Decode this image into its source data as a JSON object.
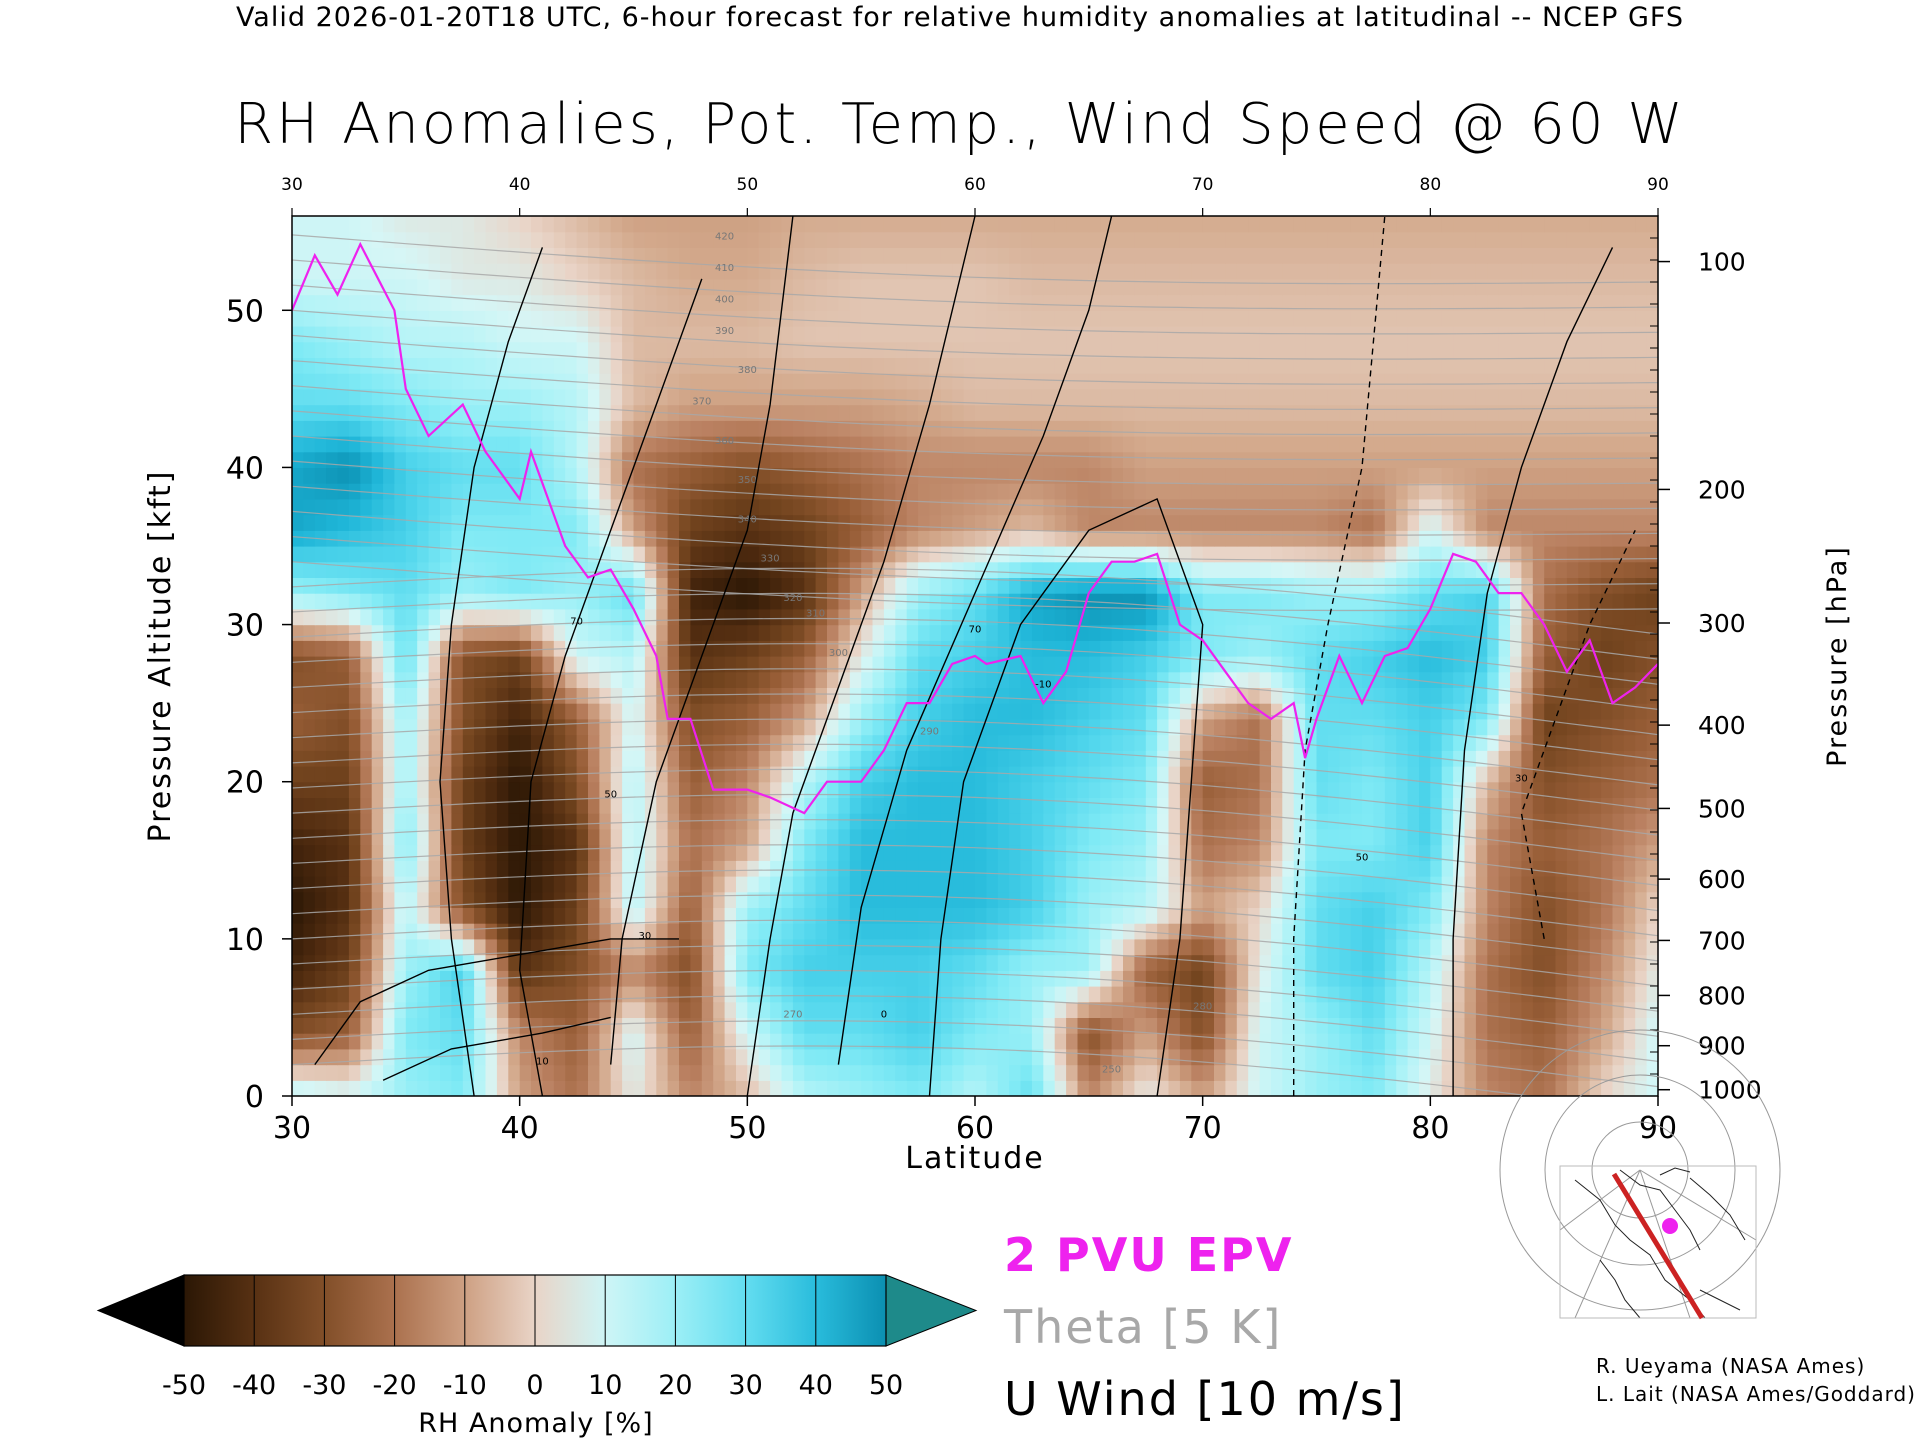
{
  "header": {
    "top_line": "Valid 2026-01-20T18 UTC, 6-hour forecast for relative humidity anomalies at latitudinal -- NCEP GFS",
    "title": "RH Anomalies, Pot. Temp., Wind Speed @ 60 W"
  },
  "chart_data": {
    "type": "heatmap",
    "title": "RH Anomalies, Pot. Temp., Wind Speed @ 60 W",
    "xlabel": "Latitude",
    "ylabel": "Pressure Altitude [kft]",
    "y2label": "Pressure [hPa]",
    "xlim": [
      30,
      90
    ],
    "ylim": [
      0,
      56
    ],
    "x_ticks": [
      30,
      40,
      50,
      60,
      70,
      80,
      90
    ],
    "y_ticks": [
      0,
      10,
      20,
      30,
      40,
      50
    ],
    "pressure_ticks": [
      {
        "label": "100",
        "kft": 53.1
      },
      {
        "label": "200",
        "kft": 38.6
      },
      {
        "label": "300",
        "kft": 30.1
      },
      {
        "label": "400",
        "kft": 23.6
      },
      {
        "label": "500",
        "kft": 18.3
      },
      {
        "label": "600",
        "kft": 13.8
      },
      {
        "label": "700",
        "kft": 9.9
      },
      {
        "label": "800",
        "kft": 6.4
      },
      {
        "label": "900",
        "kft": 3.2
      },
      {
        "label": "1000",
        "kft": 0.4
      }
    ],
    "rh_anomaly_field": {
      "x": [
        30,
        32.5,
        35,
        37.5,
        40,
        42.5,
        45,
        47.5,
        50,
        52.5,
        55,
        57.5,
        60,
        62.5,
        65,
        67.5,
        70,
        72.5,
        75,
        77.5,
        80,
        82.5,
        85,
        87.5,
        90
      ],
      "y": [
        0,
        4,
        8,
        12,
        16,
        20,
        24,
        28,
        32,
        36,
        40,
        44,
        48,
        52,
        56
      ],
      "values": [
        [
          15,
          10,
          20,
          25,
          -10,
          -20,
          5,
          -15,
          -5,
          15,
          20,
          25,
          15,
          30,
          -15,
          5,
          -10,
          10,
          20,
          25,
          5,
          -15,
          -20,
          0,
          10
        ],
        [
          -30,
          -25,
          25,
          30,
          -15,
          -25,
          10,
          -25,
          10,
          30,
          30,
          35,
          25,
          20,
          -30,
          -10,
          -30,
          10,
          20,
          30,
          10,
          -20,
          -25,
          -10,
          10
        ],
        [
          -45,
          -35,
          20,
          35,
          -40,
          -30,
          -15,
          -30,
          25,
          35,
          35,
          35,
          30,
          20,
          20,
          -25,
          -35,
          5,
          30,
          35,
          15,
          -20,
          -30,
          -15,
          5
        ],
        [
          -50,
          -40,
          15,
          -30,
          -50,
          -35,
          15,
          -25,
          20,
          30,
          40,
          40,
          40,
          35,
          20,
          15,
          -10,
          0,
          30,
          35,
          25,
          -15,
          -30,
          -20,
          0
        ],
        [
          -45,
          -40,
          25,
          -35,
          -50,
          -40,
          15,
          -20,
          -10,
          25,
          40,
          40,
          40,
          35,
          25,
          20,
          -20,
          -15,
          25,
          25,
          35,
          -15,
          -25,
          -20,
          -10
        ],
        [
          -35,
          -35,
          20,
          -35,
          -50,
          -30,
          15,
          -25,
          -15,
          15,
          35,
          40,
          40,
          35,
          30,
          25,
          -25,
          -20,
          30,
          25,
          35,
          -5,
          -30,
          -25,
          -20
        ],
        [
          -25,
          -30,
          20,
          -30,
          -45,
          -25,
          10,
          -30,
          -25,
          -10,
          20,
          35,
          40,
          40,
          35,
          30,
          -10,
          -20,
          30,
          30,
          35,
          25,
          -35,
          -30,
          -25
        ],
        [
          -30,
          -25,
          30,
          -30,
          -35,
          10,
          15,
          -40,
          -35,
          -25,
          5,
          30,
          35,
          40,
          40,
          35,
          25,
          20,
          30,
          35,
          40,
          35,
          -25,
          -35,
          -30
        ],
        [
          20,
          25,
          30,
          20,
          25,
          20,
          30,
          -45,
          -50,
          -40,
          -10,
          20,
          30,
          45,
          50,
          50,
          25,
          25,
          20,
          20,
          30,
          35,
          -20,
          -30,
          -35
        ],
        [
          45,
          40,
          35,
          25,
          25,
          25,
          -10,
          -35,
          -40,
          -35,
          -25,
          -15,
          -10,
          -5,
          -15,
          -15,
          -15,
          -15,
          -15,
          -20,
          10,
          -15,
          -15,
          -15,
          -15
        ],
        [
          45,
          50,
          35,
          30,
          30,
          15,
          -20,
          -25,
          -30,
          -25,
          -20,
          -15,
          -15,
          -15,
          -15,
          -10,
          -10,
          -10,
          -10,
          -10,
          -10,
          -10,
          -10,
          -10,
          -10
        ],
        [
          30,
          30,
          25,
          20,
          20,
          15,
          -5,
          -10,
          -10,
          -10,
          -10,
          -8,
          -5,
          -5,
          -5,
          -5,
          -5,
          -5,
          -5,
          -5,
          -5,
          -5,
          -5,
          -5,
          -5
        ],
        [
          25,
          20,
          15,
          15,
          10,
          10,
          -5,
          -5,
          -5,
          -3,
          -3,
          -3,
          -3,
          -3,
          -3,
          -3,
          -3,
          -3,
          -3,
          -3,
          -3,
          -3,
          -3,
          -3,
          -3
        ],
        [
          10,
          10,
          10,
          5,
          5,
          0,
          -5,
          -8,
          -8,
          -5,
          -3,
          -3,
          -3,
          -5,
          -5,
          -5,
          -5,
          -5,
          -5,
          -5,
          -5,
          -5,
          -5,
          -5,
          -5
        ],
        [
          10,
          10,
          5,
          5,
          0,
          -5,
          -10,
          -10,
          -10,
          -8,
          -8,
          -8,
          -8,
          -8,
          -8,
          -8,
          -8,
          -8,
          -8,
          -8,
          -8,
          -8,
          -8,
          -8,
          -8
        ]
      ]
    },
    "epv_2pvu": {
      "name": "2 PVU EPV",
      "points": [
        [
          30,
          50
        ],
        [
          31,
          53.5
        ],
        [
          32,
          51
        ],
        [
          33,
          54.2
        ],
        [
          34.5,
          50
        ],
        [
          35,
          45
        ],
        [
          36,
          42
        ],
        [
          37.5,
          44
        ],
        [
          38.5,
          41
        ],
        [
          40,
          38
        ],
        [
          40.5,
          41
        ],
        [
          41.5,
          37
        ],
        [
          42,
          35
        ],
        [
          43,
          33
        ],
        [
          44,
          33.5
        ],
        [
          45,
          31
        ],
        [
          46,
          28
        ],
        [
          46.5,
          24
        ],
        [
          47.5,
          24
        ],
        [
          48.5,
          19.5
        ],
        [
          50,
          19.5
        ],
        [
          51,
          19
        ],
        [
          52.5,
          18
        ],
        [
          53.5,
          20
        ],
        [
          55,
          20
        ],
        [
          56,
          22
        ],
        [
          57,
          25
        ],
        [
          58,
          25
        ],
        [
          59,
          27.5
        ],
        [
          60,
          28
        ],
        [
          60.5,
          27.5
        ],
        [
          62,
          28
        ],
        [
          63,
          25
        ],
        [
          64,
          27
        ],
        [
          65,
          32
        ],
        [
          66,
          34
        ],
        [
          67,
          34
        ],
        [
          68,
          34.5
        ],
        [
          69,
          30
        ],
        [
          70,
          29
        ],
        [
          71,
          27
        ],
        [
          72,
          25
        ],
        [
          73,
          24
        ],
        [
          74,
          25
        ],
        [
          74.5,
          21.5
        ],
        [
          75,
          24
        ],
        [
          76,
          28
        ],
        [
          77,
          25
        ],
        [
          78,
          28
        ],
        [
          79,
          28.5
        ],
        [
          80,
          31
        ],
        [
          81,
          34.5
        ],
        [
          82,
          34
        ],
        [
          83,
          32
        ],
        [
          84,
          32
        ],
        [
          85,
          30
        ],
        [
          86,
          27
        ],
        [
          87,
          29
        ],
        [
          88,
          25
        ],
        [
          89,
          26
        ],
        [
          90,
          27.5
        ]
      ]
    },
    "theta_contours": {
      "name": "Theta [5 K]",
      "interval_k": 5,
      "labels": [
        "250",
        "270",
        "280",
        "290",
        "300",
        "310",
        "320",
        "330",
        "340",
        "350",
        "360",
        "370",
        "380",
        "390",
        "400",
        "410",
        "420"
      ]
    },
    "u_wind_contours": {
      "name": "U Wind [10 m/s]",
      "interval_ms": 10,
      "labels": [
        "70",
        "50",
        "30",
        "10",
        "0",
        "-10"
      ]
    },
    "colorbar": {
      "label": "RH Anomaly [%]",
      "ticks": [
        -50,
        -40,
        -30,
        -20,
        -10,
        0,
        10,
        20,
        30,
        40,
        50
      ],
      "colors": [
        "#2b1705",
        "#512c10",
        "#74451f",
        "#985e37",
        "#b87e5e",
        "#d3a98c",
        "#e9d4c7",
        "#d6f6f6",
        "#aef3f7",
        "#80eaf5",
        "#4fd5ec",
        "#1fb6d8",
        "#0b8fb1"
      ],
      "under_color": "#000000",
      "over_color": "#1e8a8a"
    }
  },
  "legend": {
    "epv": "2 PVU EPV",
    "theta": "Theta [5 K]",
    "wind": "U Wind [10 m/s]"
  },
  "credits": {
    "line1": "R. Ueyama (NASA Ames)",
    "line2": "L. Lait (NASA Ames/Goddard)"
  },
  "colors": {
    "epv_line": "#ee22ee",
    "theta_line": "#a8a8a8",
    "wind_line": "#000000",
    "map_track": "#cc2222",
    "map_marker": "#ee22ee"
  }
}
